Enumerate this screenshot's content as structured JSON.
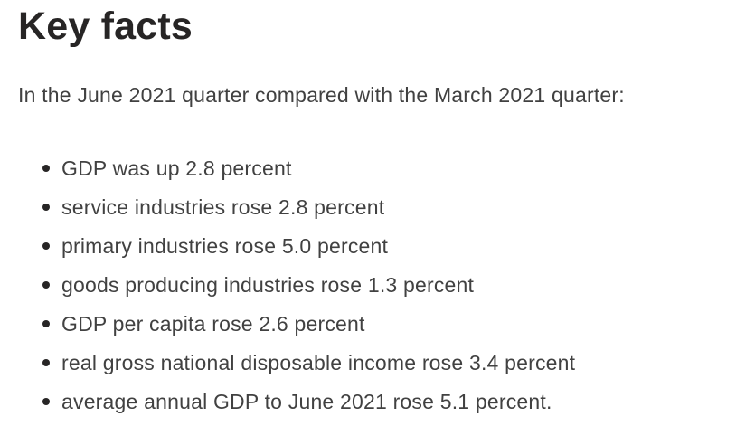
{
  "page": {
    "heading": "Key facts",
    "intro": "In the June 2021 quarter compared with the March 2021 quarter:",
    "bullets": [
      "GDP was up 2.8 percent",
      "service industries rose 2.8 percent",
      "primary industries rose 5.0 percent",
      "goods producing industries rose 1.3 percent",
      "GDP per capita rose 2.6 percent",
      "real gross national disposable income rose 3.4 percent",
      "average annual GDP to June 2021 rose 5.1 percent."
    ],
    "colors": {
      "heading": "#272525",
      "body_text": "#414141",
      "background": "#ffffff",
      "bullet_marker": "#272525"
    }
  }
}
